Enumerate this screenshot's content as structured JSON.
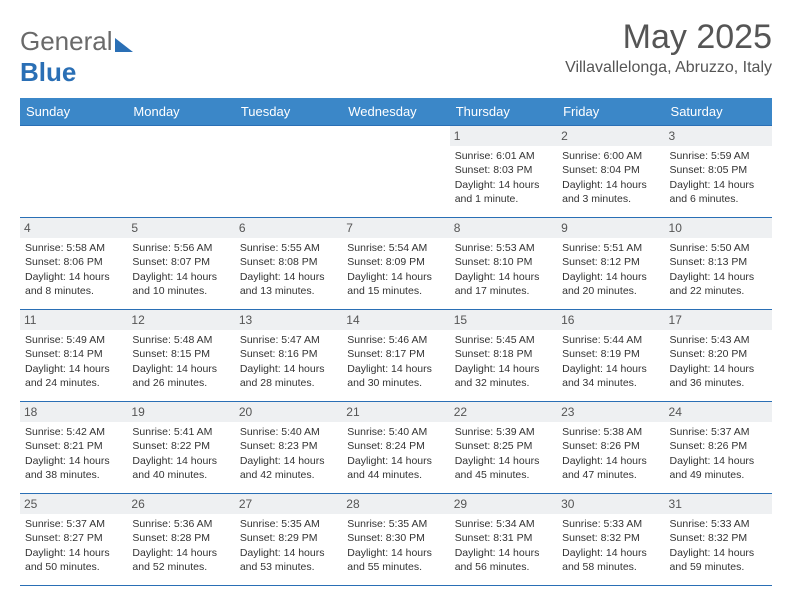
{
  "logo": {
    "part1": "General",
    "part2": "Blue"
  },
  "title": "May 2025",
  "location": "Villavallelonga, Abruzzo, Italy",
  "columns": [
    "Sunday",
    "Monday",
    "Tuesday",
    "Wednesday",
    "Thursday",
    "Friday",
    "Saturday"
  ],
  "colors": {
    "header_bg": "#3b87c8",
    "header_text": "#ffffff",
    "rule": "#2a6fb5",
    "daynum_bg": "#eef0f2",
    "text": "#333333",
    "logo_gray": "#6a6a6a",
    "logo_blue": "#2a6fb5"
  },
  "weeks": [
    [
      null,
      null,
      null,
      null,
      {
        "n": "1",
        "sr": "Sunrise: 6:01 AM",
        "ss": "Sunset: 8:03 PM",
        "dl": "Daylight: 14 hours and 1 minute."
      },
      {
        "n": "2",
        "sr": "Sunrise: 6:00 AM",
        "ss": "Sunset: 8:04 PM",
        "dl": "Daylight: 14 hours and 3 minutes."
      },
      {
        "n": "3",
        "sr": "Sunrise: 5:59 AM",
        "ss": "Sunset: 8:05 PM",
        "dl": "Daylight: 14 hours and 6 minutes."
      }
    ],
    [
      {
        "n": "4",
        "sr": "Sunrise: 5:58 AM",
        "ss": "Sunset: 8:06 PM",
        "dl": "Daylight: 14 hours and 8 minutes."
      },
      {
        "n": "5",
        "sr": "Sunrise: 5:56 AM",
        "ss": "Sunset: 8:07 PM",
        "dl": "Daylight: 14 hours and 10 minutes."
      },
      {
        "n": "6",
        "sr": "Sunrise: 5:55 AM",
        "ss": "Sunset: 8:08 PM",
        "dl": "Daylight: 14 hours and 13 minutes."
      },
      {
        "n": "7",
        "sr": "Sunrise: 5:54 AM",
        "ss": "Sunset: 8:09 PM",
        "dl": "Daylight: 14 hours and 15 minutes."
      },
      {
        "n": "8",
        "sr": "Sunrise: 5:53 AM",
        "ss": "Sunset: 8:10 PM",
        "dl": "Daylight: 14 hours and 17 minutes."
      },
      {
        "n": "9",
        "sr": "Sunrise: 5:51 AM",
        "ss": "Sunset: 8:12 PM",
        "dl": "Daylight: 14 hours and 20 minutes."
      },
      {
        "n": "10",
        "sr": "Sunrise: 5:50 AM",
        "ss": "Sunset: 8:13 PM",
        "dl": "Daylight: 14 hours and 22 minutes."
      }
    ],
    [
      {
        "n": "11",
        "sr": "Sunrise: 5:49 AM",
        "ss": "Sunset: 8:14 PM",
        "dl": "Daylight: 14 hours and 24 minutes."
      },
      {
        "n": "12",
        "sr": "Sunrise: 5:48 AM",
        "ss": "Sunset: 8:15 PM",
        "dl": "Daylight: 14 hours and 26 minutes."
      },
      {
        "n": "13",
        "sr": "Sunrise: 5:47 AM",
        "ss": "Sunset: 8:16 PM",
        "dl": "Daylight: 14 hours and 28 minutes."
      },
      {
        "n": "14",
        "sr": "Sunrise: 5:46 AM",
        "ss": "Sunset: 8:17 PM",
        "dl": "Daylight: 14 hours and 30 minutes."
      },
      {
        "n": "15",
        "sr": "Sunrise: 5:45 AM",
        "ss": "Sunset: 8:18 PM",
        "dl": "Daylight: 14 hours and 32 minutes."
      },
      {
        "n": "16",
        "sr": "Sunrise: 5:44 AM",
        "ss": "Sunset: 8:19 PM",
        "dl": "Daylight: 14 hours and 34 minutes."
      },
      {
        "n": "17",
        "sr": "Sunrise: 5:43 AM",
        "ss": "Sunset: 8:20 PM",
        "dl": "Daylight: 14 hours and 36 minutes."
      }
    ],
    [
      {
        "n": "18",
        "sr": "Sunrise: 5:42 AM",
        "ss": "Sunset: 8:21 PM",
        "dl": "Daylight: 14 hours and 38 minutes."
      },
      {
        "n": "19",
        "sr": "Sunrise: 5:41 AM",
        "ss": "Sunset: 8:22 PM",
        "dl": "Daylight: 14 hours and 40 minutes."
      },
      {
        "n": "20",
        "sr": "Sunrise: 5:40 AM",
        "ss": "Sunset: 8:23 PM",
        "dl": "Daylight: 14 hours and 42 minutes."
      },
      {
        "n": "21",
        "sr": "Sunrise: 5:40 AM",
        "ss": "Sunset: 8:24 PM",
        "dl": "Daylight: 14 hours and 44 minutes."
      },
      {
        "n": "22",
        "sr": "Sunrise: 5:39 AM",
        "ss": "Sunset: 8:25 PM",
        "dl": "Daylight: 14 hours and 45 minutes."
      },
      {
        "n": "23",
        "sr": "Sunrise: 5:38 AM",
        "ss": "Sunset: 8:26 PM",
        "dl": "Daylight: 14 hours and 47 minutes."
      },
      {
        "n": "24",
        "sr": "Sunrise: 5:37 AM",
        "ss": "Sunset: 8:26 PM",
        "dl": "Daylight: 14 hours and 49 minutes."
      }
    ],
    [
      {
        "n": "25",
        "sr": "Sunrise: 5:37 AM",
        "ss": "Sunset: 8:27 PM",
        "dl": "Daylight: 14 hours and 50 minutes."
      },
      {
        "n": "26",
        "sr": "Sunrise: 5:36 AM",
        "ss": "Sunset: 8:28 PM",
        "dl": "Daylight: 14 hours and 52 minutes."
      },
      {
        "n": "27",
        "sr": "Sunrise: 5:35 AM",
        "ss": "Sunset: 8:29 PM",
        "dl": "Daylight: 14 hours and 53 minutes."
      },
      {
        "n": "28",
        "sr": "Sunrise: 5:35 AM",
        "ss": "Sunset: 8:30 PM",
        "dl": "Daylight: 14 hours and 55 minutes."
      },
      {
        "n": "29",
        "sr": "Sunrise: 5:34 AM",
        "ss": "Sunset: 8:31 PM",
        "dl": "Daylight: 14 hours and 56 minutes."
      },
      {
        "n": "30",
        "sr": "Sunrise: 5:33 AM",
        "ss": "Sunset: 8:32 PM",
        "dl": "Daylight: 14 hours and 58 minutes."
      },
      {
        "n": "31",
        "sr": "Sunrise: 5:33 AM",
        "ss": "Sunset: 8:32 PM",
        "dl": "Daylight: 14 hours and 59 minutes."
      }
    ]
  ]
}
